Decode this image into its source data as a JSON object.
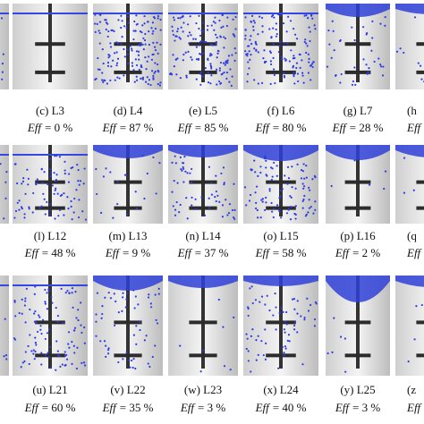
{
  "eff_symbol": "Eff",
  "rows": [
    {
      "panels": [
        {
          "caption": "(c) L3",
          "efficiency": "= 0 %"
        },
        {
          "caption": "(d) L4",
          "efficiency": "= 87 %"
        },
        {
          "caption": "(e) L5",
          "efficiency": "= 85 %"
        },
        {
          "caption": "(f) L6",
          "efficiency": "= 80 %"
        },
        {
          "caption": "(g) L7",
          "efficiency": "= 28 %"
        },
        {
          "caption": "(h"
        }
      ]
    },
    {
      "panels": [
        {
          "caption": "(l) L12",
          "efficiency": "= 48 %"
        },
        {
          "caption": "(m) L13",
          "efficiency": "= 9 %"
        },
        {
          "caption": "(n) L14",
          "efficiency": "= 37 %"
        },
        {
          "caption": "(o) L15",
          "efficiency": "= 58 %"
        },
        {
          "caption": "(p) L16",
          "efficiency": "= 2 %"
        },
        {
          "caption": "(q"
        }
      ]
    },
    {
      "panels": [
        {
          "caption": "(u) L21",
          "efficiency": "= 60 %"
        },
        {
          "caption": "(v) L22",
          "efficiency": "= 35 %"
        },
        {
          "caption": "(w) L23",
          "efficiency": "= 3 %"
        },
        {
          "caption": "(x) L24",
          "efficiency": "= 40 %"
        },
        {
          "caption": "(y) L25",
          "efficiency": "= 3 %"
        },
        {
          "caption": "(z"
        }
      ]
    }
  ]
}
